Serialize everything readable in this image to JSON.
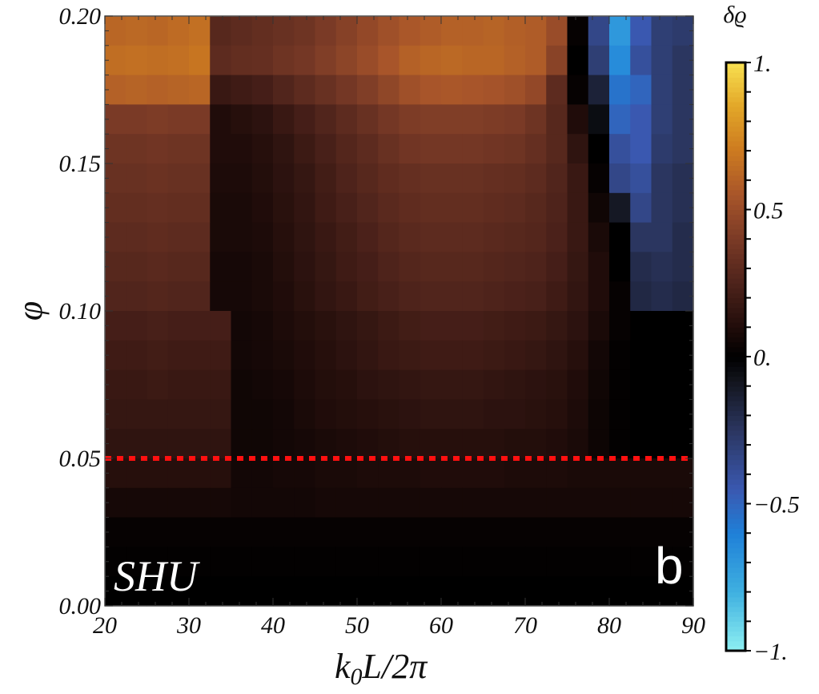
{
  "chart_data": {
    "type": "heatmap",
    "xlabel": "k0L/2π",
    "xlabel_parts": {
      "k": "k",
      "sub": "0",
      "rest": "L/2π"
    },
    "ylabel": "φ",
    "xlim": [
      20,
      90
    ],
    "ylim": [
      0.0,
      0.2
    ],
    "x_ticks": [
      "20",
      "30",
      "40",
      "50",
      "60",
      "70",
      "80",
      "90"
    ],
    "x_tick_values": [
      20,
      30,
      40,
      50,
      60,
      70,
      80,
      90
    ],
    "y_ticks": [
      "0.00",
      "0.05",
      "0.10",
      "0.15",
      "0.20"
    ],
    "y_tick_values": [
      0.0,
      0.05,
      0.1,
      0.15,
      0.2
    ],
    "colorbar": {
      "label": "δϱ",
      "range": [
        -1,
        1
      ],
      "ticks": [
        "1.",
        "0.5",
        "0.",
        "−0.5",
        "−1."
      ],
      "tick_values": [
        1,
        0.5,
        0,
        -0.5,
        -1
      ]
    },
    "annotations": {
      "region": "SHU",
      "panel": "b",
      "reference_line": {
        "phi": 0.05,
        "color": "#ff1010",
        "style": "dotted"
      }
    },
    "x_step": 2.5,
    "x_centers": [
      21.25,
      23.75,
      26.25,
      28.75,
      31.25,
      33.75,
      36.25,
      38.75,
      41.25,
      43.75,
      46.25,
      48.75,
      51.25,
      53.75,
      56.25,
      58.75,
      61.25,
      63.75,
      66.25,
      68.75,
      71.25,
      73.75,
      76.25,
      78.75,
      81.25,
      83.75,
      86.25,
      88.75
    ],
    "y_step": 0.01,
    "y_centers": [
      0.195,
      0.185,
      0.175,
      0.165,
      0.155,
      0.145,
      0.135,
      0.125,
      0.115,
      0.105,
      0.095,
      0.085,
      0.075,
      0.065,
      0.055,
      0.045,
      0.035,
      0.025,
      0.015,
      0.005
    ],
    "values": [
      [
        0.62,
        0.63,
        0.62,
        0.64,
        0.66,
        0.28,
        0.3,
        0.32,
        0.34,
        0.36,
        0.4,
        0.44,
        0.48,
        0.52,
        0.56,
        0.58,
        0.6,
        0.6,
        0.61,
        0.59,
        0.58,
        0.5,
        0.02,
        -0.35,
        -0.7,
        -0.45,
        -0.3,
        -0.28
      ],
      [
        0.65,
        0.66,
        0.65,
        0.66,
        0.68,
        0.3,
        0.32,
        0.33,
        0.36,
        0.38,
        0.42,
        0.46,
        0.5,
        0.55,
        0.6,
        0.62,
        0.63,
        0.62,
        0.62,
        0.6,
        0.58,
        0.45,
        0.0,
        -0.3,
        -0.65,
        -0.4,
        -0.3,
        -0.25
      ],
      [
        0.6,
        0.61,
        0.6,
        0.61,
        0.62,
        0.18,
        0.2,
        0.22,
        0.26,
        0.3,
        0.34,
        0.38,
        0.42,
        0.47,
        0.52,
        0.55,
        0.56,
        0.55,
        0.54,
        0.52,
        0.48,
        0.3,
        0.02,
        -0.15,
        -0.55,
        -0.5,
        -0.3,
        -0.25
      ],
      [
        0.4,
        0.4,
        0.41,
        0.4,
        0.4,
        0.1,
        0.12,
        0.14,
        0.18,
        0.22,
        0.26,
        0.3,
        0.34,
        0.38,
        0.41,
        0.42,
        0.42,
        0.42,
        0.41,
        0.4,
        0.36,
        0.28,
        0.1,
        -0.05,
        -0.5,
        -0.45,
        -0.3,
        -0.25
      ],
      [
        0.36,
        0.36,
        0.37,
        0.36,
        0.36,
        0.1,
        0.1,
        0.12,
        0.15,
        0.19,
        0.23,
        0.27,
        0.3,
        0.34,
        0.37,
        0.38,
        0.38,
        0.38,
        0.37,
        0.36,
        0.33,
        0.28,
        0.15,
        0.0,
        -0.4,
        -0.45,
        -0.28,
        -0.25
      ],
      [
        0.34,
        0.34,
        0.35,
        0.34,
        0.34,
        0.09,
        0.09,
        0.11,
        0.14,
        0.17,
        0.21,
        0.25,
        0.28,
        0.31,
        0.33,
        0.34,
        0.34,
        0.34,
        0.33,
        0.32,
        0.3,
        0.26,
        0.18,
        0.02,
        -0.35,
        -0.4,
        -0.25,
        -0.22
      ],
      [
        0.32,
        0.32,
        0.33,
        0.32,
        0.32,
        0.08,
        0.08,
        0.1,
        0.13,
        0.16,
        0.2,
        0.23,
        0.26,
        0.29,
        0.31,
        0.32,
        0.32,
        0.32,
        0.31,
        0.3,
        0.28,
        0.25,
        0.18,
        0.05,
        -0.1,
        -0.35,
        -0.25,
        -0.22
      ],
      [
        0.3,
        0.3,
        0.31,
        0.3,
        0.3,
        0.08,
        0.08,
        0.09,
        0.12,
        0.15,
        0.18,
        0.21,
        0.24,
        0.27,
        0.29,
        0.3,
        0.3,
        0.3,
        0.29,
        0.28,
        0.27,
        0.24,
        0.18,
        0.08,
        0.0,
        -0.25,
        -0.25,
        -0.2
      ],
      [
        0.28,
        0.28,
        0.29,
        0.28,
        0.28,
        0.07,
        0.07,
        0.08,
        0.11,
        0.14,
        0.17,
        0.2,
        0.22,
        0.25,
        0.27,
        0.28,
        0.28,
        0.28,
        0.27,
        0.26,
        0.25,
        0.22,
        0.17,
        0.1,
        0.0,
        -0.2,
        -0.22,
        -0.2
      ],
      [
        0.26,
        0.26,
        0.27,
        0.26,
        0.26,
        0.07,
        0.07,
        0.08,
        0.1,
        0.13,
        0.16,
        0.18,
        0.21,
        0.23,
        0.25,
        0.26,
        0.26,
        0.26,
        0.25,
        0.24,
        0.23,
        0.2,
        0.16,
        0.1,
        0.02,
        -0.18,
        -0.2,
        -0.18
      ],
      [
        0.22,
        0.22,
        0.23,
        0.22,
        0.22,
        0.22,
        0.06,
        0.07,
        0.09,
        0.11,
        0.13,
        0.15,
        0.17,
        0.19,
        0.21,
        0.22,
        0.22,
        0.22,
        0.21,
        0.2,
        0.19,
        0.17,
        0.14,
        0.08,
        0.02,
        0.0,
        0.0,
        0.0
      ],
      [
        0.2,
        0.2,
        0.21,
        0.2,
        0.2,
        0.2,
        0.06,
        0.07,
        0.08,
        0.1,
        0.12,
        0.14,
        0.16,
        0.18,
        0.19,
        0.2,
        0.2,
        0.2,
        0.19,
        0.18,
        0.17,
        0.15,
        0.12,
        0.06,
        0.01,
        0.0,
        0.0,
        0.0
      ],
      [
        0.18,
        0.18,
        0.19,
        0.18,
        0.18,
        0.18,
        0.05,
        0.06,
        0.07,
        0.09,
        0.11,
        0.12,
        0.14,
        0.15,
        0.16,
        0.17,
        0.17,
        0.17,
        0.16,
        0.15,
        0.14,
        0.13,
        0.1,
        0.05,
        0.01,
        0.0,
        0.0,
        0.0
      ],
      [
        0.17,
        0.17,
        0.17,
        0.17,
        0.17,
        0.17,
        0.05,
        0.05,
        0.06,
        0.08,
        0.1,
        0.11,
        0.12,
        0.13,
        0.14,
        0.15,
        0.15,
        0.15,
        0.14,
        0.14,
        0.13,
        0.12,
        0.09,
        0.04,
        0.01,
        0.0,
        0.0,
        0.0
      ],
      [
        0.15,
        0.15,
        0.15,
        0.15,
        0.15,
        0.15,
        0.05,
        0.05,
        0.06,
        0.07,
        0.08,
        0.09,
        0.1,
        0.11,
        0.12,
        0.12,
        0.12,
        0.12,
        0.12,
        0.11,
        0.11,
        0.1,
        0.08,
        0.04,
        0.01,
        0.0,
        0.0,
        0.0
      ],
      [
        0.12,
        0.12,
        0.12,
        0.12,
        0.12,
        0.12,
        0.06,
        0.06,
        0.07,
        0.07,
        0.08,
        0.08,
        0.09,
        0.09,
        0.09,
        0.1,
        0.1,
        0.1,
        0.1,
        0.09,
        0.09,
        0.09,
        0.08,
        0.08,
        0.08,
        0.08,
        0.08,
        0.08
      ],
      [
        0.07,
        0.07,
        0.07,
        0.07,
        0.07,
        0.07,
        0.06,
        0.06,
        0.06,
        0.06,
        0.07,
        0.07,
        0.07,
        0.07,
        0.07,
        0.07,
        0.07,
        0.07,
        0.07,
        0.07,
        0.07,
        0.07,
        0.07,
        0.07,
        0.07,
        0.07,
        0.07,
        0.07
      ],
      [
        0.02,
        0.02,
        0.02,
        0.02,
        0.02,
        0.02,
        0.02,
        0.02,
        0.02,
        0.02,
        0.02,
        0.02,
        0.02,
        0.02,
        0.02,
        0.02,
        0.02,
        0.02,
        0.02,
        0.02,
        0.02,
        0.02,
        0.02,
        0.02,
        0.02,
        0.02,
        0.02,
        0.02
      ],
      [
        0.01,
        0.01,
        0.01,
        0.01,
        0.01,
        0.01,
        0.01,
        0.01,
        0.01,
        0.01,
        0.01,
        0.01,
        0.01,
        0.01,
        0.01,
        0.01,
        0.01,
        0.01,
        0.01,
        0.01,
        0.01,
        0.01,
        0.01,
        0.01,
        0.01,
        0.01,
        0.01,
        0.01
      ],
      [
        0.0,
        0.0,
        0.0,
        0.0,
        0.0,
        0.0,
        0.0,
        0.0,
        0.0,
        0.0,
        0.0,
        0.0,
        0.0,
        0.0,
        0.0,
        0.0,
        0.0,
        0.0,
        0.0,
        0.0,
        0.0,
        0.0,
        0.0,
        0.0,
        0.0,
        0.0,
        0.0,
        0.0
      ]
    ],
    "colormap": [
      {
        "v": -1.0,
        "c": "#8ef0f2"
      },
      {
        "v": -0.8,
        "c": "#3fb0e0"
      },
      {
        "v": -0.6,
        "c": "#1f80d8"
      },
      {
        "v": -0.45,
        "c": "#3a58b0"
      },
      {
        "v": -0.25,
        "c": "#2b3660"
      },
      {
        "v": -0.08,
        "c": "#12141c"
      },
      {
        "v": 0.0,
        "c": "#000000"
      },
      {
        "v": 0.1,
        "c": "#200c0a"
      },
      {
        "v": 0.25,
        "c": "#4e231b"
      },
      {
        "v": 0.4,
        "c": "#7a3a26"
      },
      {
        "v": 0.55,
        "c": "#a8552a"
      },
      {
        "v": 0.7,
        "c": "#cc7a20"
      },
      {
        "v": 0.85,
        "c": "#e2a628"
      },
      {
        "v": 1.0,
        "c": "#f8e050"
      }
    ]
  }
}
